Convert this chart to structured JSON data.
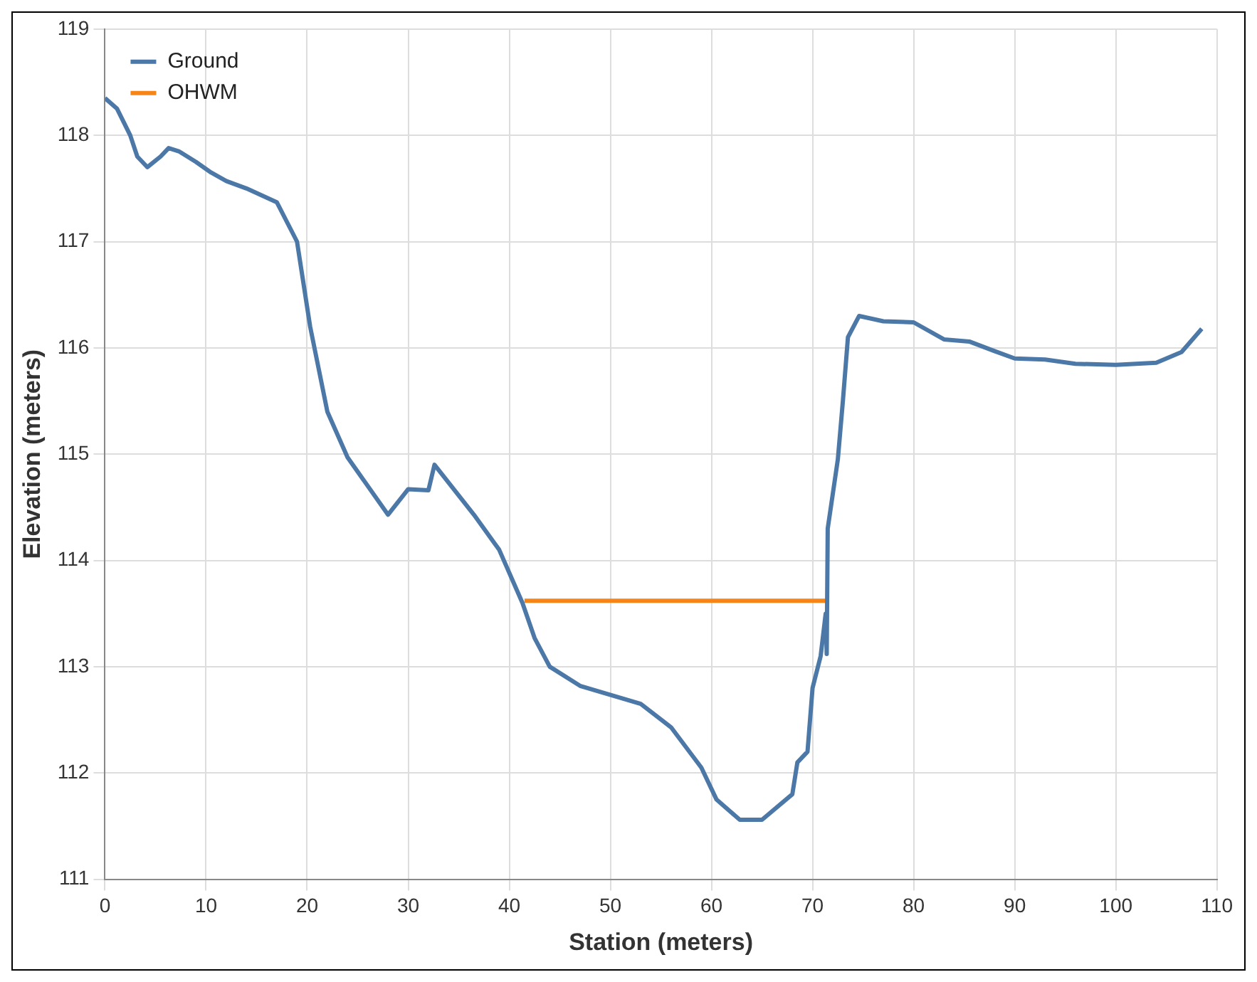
{
  "chart_data": {
    "type": "line",
    "xlabel": "Station (meters)",
    "ylabel": "Elevation (meters)",
    "xlim": [
      0,
      110
    ],
    "xticks": [
      0,
      10,
      20,
      30,
      40,
      50,
      60,
      70,
      80,
      90,
      100,
      110
    ],
    "ylim": [
      111,
      119
    ],
    "yticks": [
      111,
      112,
      113,
      114,
      115,
      116,
      117,
      118,
      119
    ],
    "grid": true,
    "legend": "top left",
    "marker": "none",
    "line_style": "solid",
    "series": [
      {
        "name": "Ground",
        "color": "#4c78a8",
        "x": [
          0,
          1.2,
          2.5,
          3.2,
          4.2,
          5.5,
          6.3,
          7.3,
          9,
          10.5,
          12,
          14,
          17,
          19,
          20.3,
          22,
          24,
          28,
          30,
          32,
          32.6,
          36.5,
          39,
          41.3,
          42.5,
          44,
          47,
          53,
          56,
          59,
          60.5,
          62.8,
          65,
          68,
          68.5,
          69.5,
          70,
          70.8,
          71.3,
          71.4,
          71.5,
          72.5,
          73,
          73.5,
          74.6,
          77,
          80,
          83,
          85.5,
          88,
          90,
          93,
          96,
          100,
          104,
          106.5,
          108.5
        ],
        "values": [
          118.35,
          118.25,
          118.0,
          117.8,
          117.7,
          117.8,
          117.88,
          117.85,
          117.75,
          117.65,
          117.57,
          117.5,
          117.37,
          117.0,
          116.2,
          115.4,
          114.97,
          114.43,
          114.67,
          114.66,
          114.9,
          114.43,
          114.1,
          113.6,
          113.27,
          113.0,
          112.82,
          112.65,
          112.43,
          112.05,
          111.75,
          111.56,
          111.56,
          111.8,
          112.1,
          112.2,
          112.8,
          113.1,
          113.5,
          113.12,
          114.3,
          114.95,
          115.5,
          116.1,
          116.3,
          116.25,
          116.24,
          116.08,
          116.06,
          115.97,
          115.9,
          115.89,
          115.85,
          115.84,
          115.86,
          115.96,
          116.18
        ]
      },
      {
        "name": "OHWM",
        "color": "#f58518",
        "x": [
          41.5,
          71.5
        ],
        "values": [
          113.62,
          113.62
        ]
      }
    ]
  }
}
